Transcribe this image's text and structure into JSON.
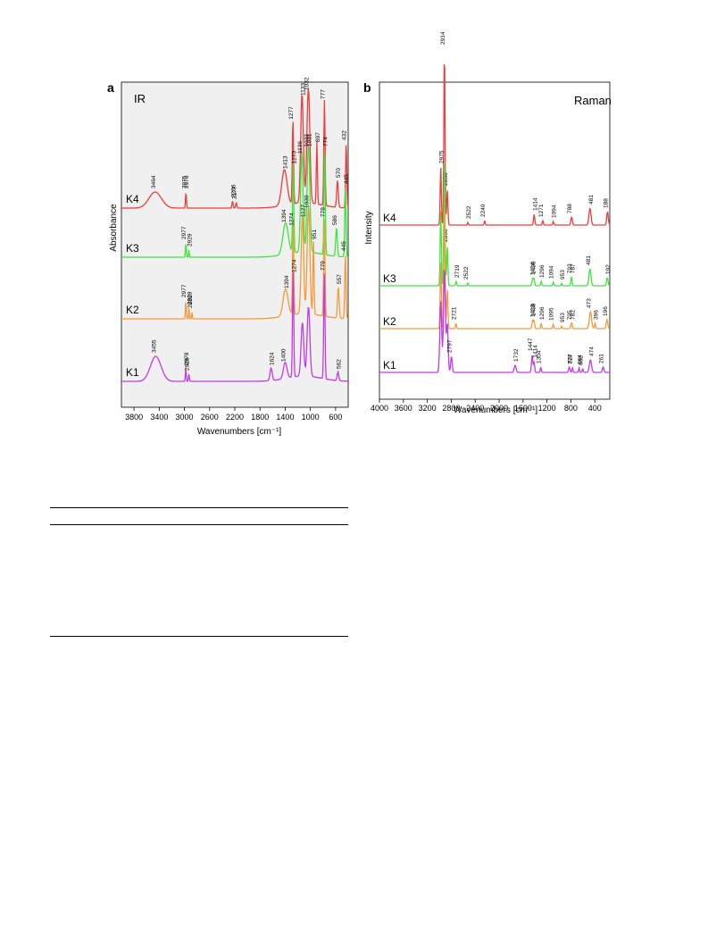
{
  "panels": [
    {
      "id": "a",
      "letter": "a",
      "title": "IR",
      "xlabel": "Wavenumbers [cm⁻¹]",
      "ylabel": "Absorbance",
      "x_ticks": [
        3800,
        3400,
        3000,
        2600,
        2200,
        1800,
        1400,
        1000,
        600
      ],
      "series": [
        {
          "label": "K4",
          "color": "#f03c3c",
          "peaks": [
            3464,
            2976,
            2975,
            2236,
            2177,
            1413,
            1277,
            1133,
            1032,
            897,
            777,
            570,
            432
          ]
        },
        {
          "label": "K3",
          "color": "#3ce63c",
          "peaks": [
            2977,
            2929,
            1394,
            1273,
            1136,
            1031,
            1033,
            774,
            586,
            445
          ]
        },
        {
          "label": "K2",
          "color": "#f59a3c",
          "peaks": [
            2977,
            2928,
            2880,
            1394,
            1274,
            1127,
            1030,
            951,
            779,
            557,
            445
          ]
        },
        {
          "label": "K1",
          "color": "#c03ce6",
          "peaks": [
            3455,
            2978,
            2929,
            1624,
            1400,
            1274,
            779,
            562
          ]
        }
      ]
    },
    {
      "id": "b",
      "letter": "b",
      "title": "Raman",
      "xlabel": "Wavenumbers [cm⁻¹]",
      "ylabel": "Intensity",
      "x_ticks": [
        4000,
        3600,
        3200,
        2800,
        2400,
        2000,
        1600,
        1200,
        800,
        400
      ],
      "series": [
        {
          "label": "K4",
          "color": "#f03c3c",
          "peaks": [
            2914,
            2975,
            2866,
            2522,
            2240,
            1414,
            1271,
            1094,
            788,
            481,
            188
          ]
        },
        {
          "label": "K3",
          "color": "#3ce63c",
          "peaks": [
            2866,
            2719,
            2522,
            1438,
            1414,
            1296,
            1094,
            953,
            793,
            787,
            481,
            192
          ]
        },
        {
          "label": "K2",
          "color": "#f59a3c",
          "peaks": [
            2721,
            1438,
            1413,
            1296,
            1095,
            953,
            795,
            782,
            473,
            396,
            196
          ]
        },
        {
          "label": "K1",
          "color": "#c03ce6",
          "peaks": [
            2797,
            1732,
            1447,
            1414,
            1304,
            827,
            774,
            664,
            602,
            474,
            261
          ]
        }
      ]
    }
  ],
  "chart_data": [
    {
      "type": "line",
      "title": "IR",
      "xlabel": "Wavenumbers [cm⁻¹]",
      "ylabel": "Absorbance",
      "xlim": [
        4000,
        400
      ],
      "x_ticks": [
        3800,
        3400,
        3000,
        2600,
        2200,
        1800,
        1400,
        1000,
        600
      ],
      "series": [
        {
          "name": "K4",
          "peaks_cm-1": [
            3464,
            2976,
            2975,
            2236,
            2177,
            1413,
            1277,
            1133,
            1032,
            897,
            777,
            570,
            432
          ]
        },
        {
          "name": "K3",
          "peaks_cm-1": [
            2977,
            2929,
            1394,
            1273,
            1136,
            1031,
            1033,
            774,
            586,
            445
          ]
        },
        {
          "name": "K2",
          "peaks_cm-1": [
            2977,
            2928,
            2880,
            1394,
            1274,
            1127,
            1030,
            951,
            779,
            557,
            445
          ]
        },
        {
          "name": "K1",
          "peaks_cm-1": [
            3455,
            2978,
            2929,
            1624,
            1400,
            1274,
            779,
            562
          ]
        }
      ]
    },
    {
      "type": "line",
      "title": "Raman",
      "xlabel": "Wavenumbers [cm⁻¹]",
      "ylabel": "Intensity",
      "xlim": [
        4000,
        150
      ],
      "x_ticks": [
        4000,
        3600,
        3200,
        2800,
        2400,
        2000,
        1600,
        1200,
        800,
        400
      ],
      "series": [
        {
          "name": "K4",
          "peaks_cm-1": [
            2914,
            2975,
            2866,
            2522,
            2240,
            1414,
            1271,
            1094,
            788,
            481,
            188
          ]
        },
        {
          "name": "K3",
          "peaks_cm-1": [
            2866,
            2719,
            2522,
            1438,
            1414,
            1296,
            1094,
            953,
            793,
            787,
            481,
            192
          ]
        },
        {
          "name": "K2",
          "peaks_cm-1": [
            2721,
            1438,
            1413,
            1296,
            1095,
            953,
            795,
            782,
            473,
            396,
            196
          ]
        },
        {
          "name": "K1",
          "peaks_cm-1": [
            2797,
            1732,
            1447,
            1414,
            1304,
            827,
            774,
            664,
            602,
            474,
            261
          ]
        }
      ]
    }
  ]
}
